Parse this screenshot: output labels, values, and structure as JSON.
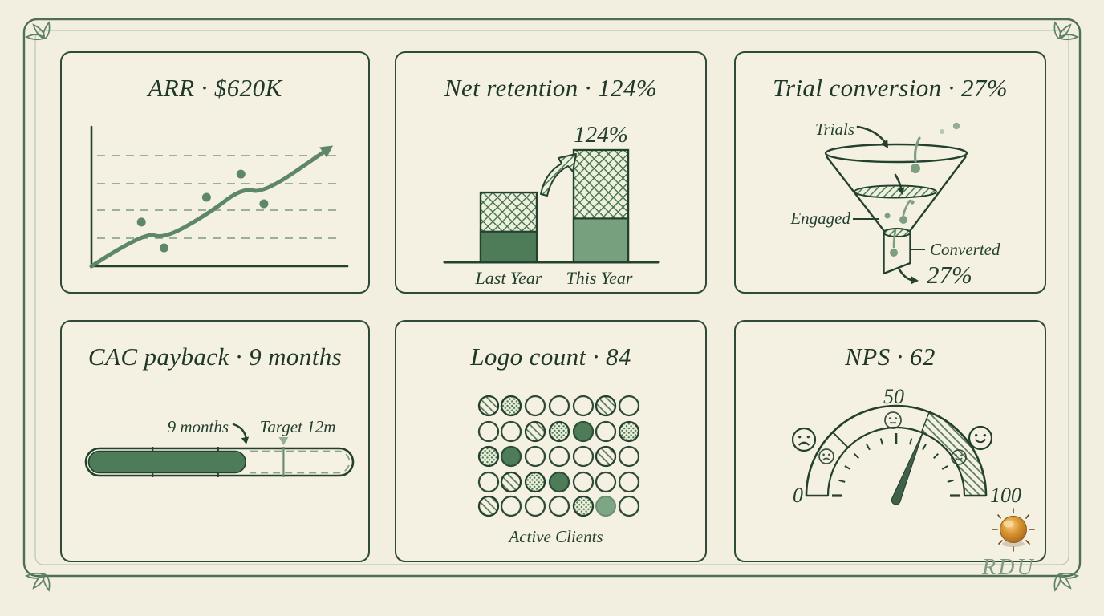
{
  "page": {
    "watermark": "RDU"
  },
  "colors": {
    "background": "#f3efe0",
    "ink": "#24402e",
    "title_ink": "#1e3727",
    "line_green": "#5d8766",
    "solid_green_dark": "#4e7c59",
    "solid_green_light": "#76a07e",
    "muted_green": "#7e9b80",
    "accent_orange": "#d99530"
  },
  "panels": {
    "arr": {
      "title": "ARR · $620K"
    },
    "net_retention": {
      "title": "Net retention · 124%",
      "bar_label": "124%",
      "categories": [
        "Last Year",
        "This Year"
      ]
    },
    "trial_conversion": {
      "title": "Trial conversion · 27%",
      "label_trials": "Trials",
      "label_engaged": "Engaged",
      "label_converted": "Converted",
      "result_label": "27%"
    },
    "cac_payback": {
      "title": "CAC payback · 9 months",
      "progress_label": "9 months",
      "target_label": "Target 12m"
    },
    "logo_count": {
      "title": "Logo count · 84",
      "caption": "Active Clients"
    },
    "nps": {
      "title": "NPS · 62",
      "tick_min": "0",
      "tick_mid": "50",
      "tick_max": "100"
    }
  },
  "chart_data": [
    {
      "panel": "arr",
      "type": "line",
      "title": "ARR · $620K",
      "kpi_value": "$620K",
      "xlabel": "",
      "ylabel": "",
      "grid": "4 dashed horizontal gridlines, unlabeled axes",
      "trend": "rising with two small dips, ends in an upward arrow",
      "line_points_pct": [
        [
          0,
          0
        ],
        [
          21.2,
          25.3
        ],
        [
          28.9,
          20
        ],
        [
          46.6,
          38.2
        ],
        [
          60.4,
          57.6
        ],
        [
          69.1,
          53.5
        ],
        [
          95.2,
          86.5
        ]
      ],
      "scatter_dots_pct": [
        [
          20,
          32.4
        ],
        [
          29.1,
          13.5
        ],
        [
          46.1,
          50.6
        ],
        [
          59.9,
          67.6
        ],
        [
          69.1,
          45.9
        ]
      ]
    },
    {
      "panel": "net_retention",
      "type": "bar",
      "title": "Net retention · 124%",
      "unit": "%",
      "categories": [
        "Last Year",
        "This Year"
      ],
      "values": [
        77,
        124
      ],
      "data_labels": [
        "",
        "124%"
      ],
      "value_note": "This Year labeled 124%; Last Year unlabeled, estimated from drawn bar height",
      "solid_fraction_drawn": [
        0.44,
        0.39
      ],
      "bar_fills": [
        "#4e7c59",
        "#76a07e"
      ]
    },
    {
      "panel": "trial_conversion",
      "type": "funnel",
      "title": "Trial conversion · 27%",
      "stages": [
        "Trials",
        "Engaged",
        "Converted"
      ],
      "conversion_rate": "27%"
    },
    {
      "panel": "cac_payback",
      "type": "progress",
      "title": "CAC payback · 9 months",
      "value": 9,
      "unit": "months",
      "target": 12,
      "target_label": "Target 12m",
      "drawn_fill_pct": 60,
      "drawn_target_pct": 74,
      "tick_pcts_drawn": [
        25,
        49.5
      ]
    },
    {
      "panel": "logo_count",
      "type": "pictogram",
      "title": "Logo count · 84",
      "count": 84,
      "caption": "Active Clients",
      "grid_rows": 5,
      "grid_cols": 7,
      "grid": [
        [
          "hatch",
          "dots",
          "empty",
          "empty",
          "empty",
          "hatch",
          "empty"
        ],
        [
          "empty",
          "empty",
          "hatch",
          "dots",
          "solid",
          "empty",
          "dots"
        ],
        [
          "dots",
          "solid",
          "empty",
          "empty",
          "empty",
          "hatch",
          "empty"
        ],
        [
          "empty",
          "hatch",
          "dots",
          "solid",
          "empty",
          "empty",
          "empty"
        ],
        [
          "hatch",
          "empty",
          "empty",
          "empty",
          "dots",
          "solid_light",
          "empty"
        ]
      ]
    },
    {
      "panel": "nps",
      "type": "gauge",
      "title": "NPS · 62",
      "value": 62,
      "min": 0,
      "max": 100,
      "ticks": [
        0,
        50,
        100
      ],
      "hatched_segment": [
        62,
        100
      ],
      "divider_at": 25,
      "faces": [
        "sad-outside-left",
        "sad-inner-left",
        "neutral-top",
        "happy-inner-right",
        "happy-outside-right"
      ]
    }
  ]
}
